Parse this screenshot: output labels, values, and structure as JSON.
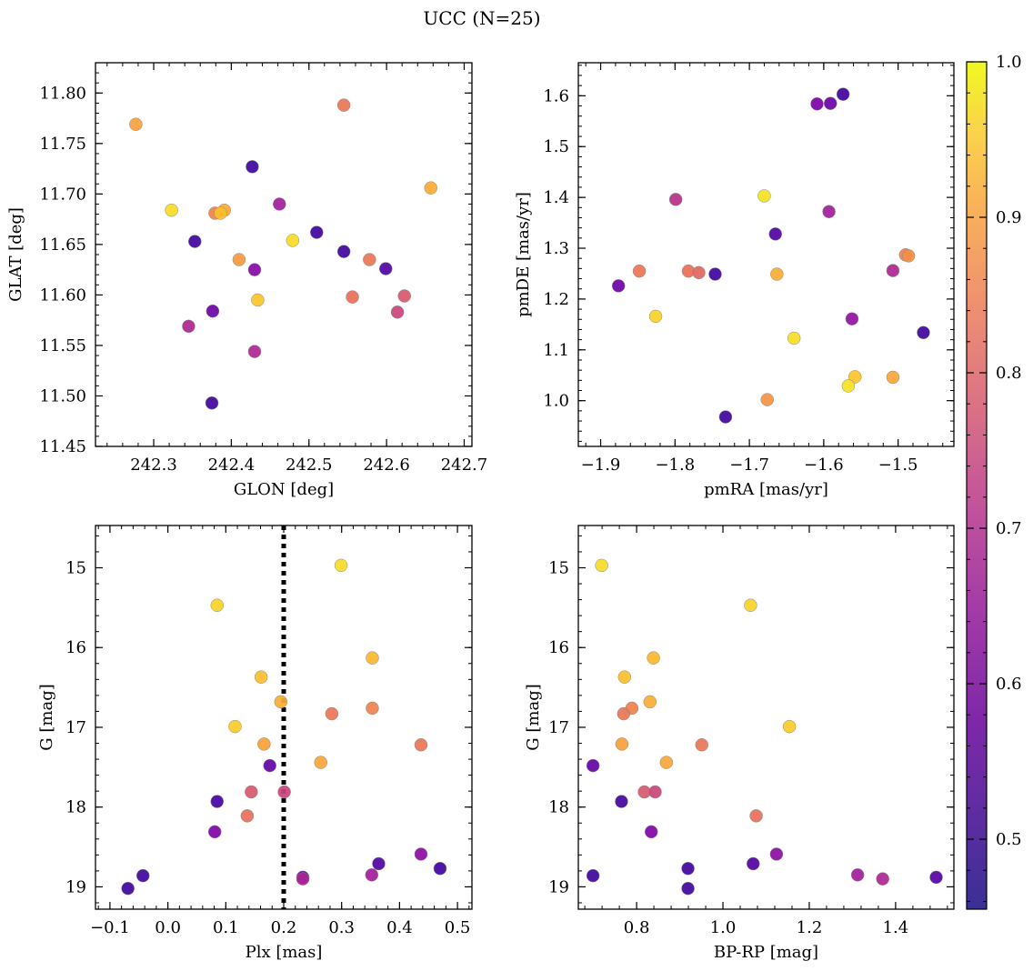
{
  "title": "UCC (N=25)",
  "colorbar": {
    "colormap": "plasma",
    "range": [
      0.455,
      1.0
    ],
    "ticks": [
      0.5,
      0.6,
      0.7,
      0.8,
      0.9,
      1.0
    ],
    "tick_labels": [
      "0.5",
      "0.6",
      "0.7",
      "0.8",
      "0.9",
      "1.0"
    ]
  },
  "chart_data": [
    {
      "type": "scatter",
      "id": "glon-glat",
      "xlabel": "GLON [deg]",
      "ylabel": "GLAT [deg]",
      "xlim": [
        242.225,
        242.71
      ],
      "ylim": [
        11.45,
        11.83
      ],
      "invert_y": false,
      "xticks": [
        242.3,
        242.4,
        242.5,
        242.6,
        242.7
      ],
      "xtick_labels": [
        "242.3",
        "242.4",
        "242.5",
        "242.6",
        "242.7"
      ],
      "yticks": [
        11.45,
        11.5,
        11.55,
        11.6,
        11.65,
        11.7,
        11.75,
        11.8
      ],
      "ytick_labels": [
        "11.45",
        "11.50",
        "11.55",
        "11.60",
        "11.65",
        "11.70",
        "11.75",
        "11.80"
      ],
      "points": [
        {
          "x": 242.277,
          "y": 11.769,
          "c": 0.87
        },
        {
          "x": 242.545,
          "y": 11.788,
          "c": 0.8
        },
        {
          "x": 242.427,
          "y": 11.727,
          "c": 0.47
        },
        {
          "x": 242.657,
          "y": 11.706,
          "c": 0.89
        },
        {
          "x": 242.323,
          "y": 11.684,
          "c": 0.96
        },
        {
          "x": 242.391,
          "y": 11.684,
          "c": 0.89
        },
        {
          "x": 242.379,
          "y": 11.681,
          "c": 0.82
        },
        {
          "x": 242.386,
          "y": 11.681,
          "c": 0.92
        },
        {
          "x": 242.462,
          "y": 11.69,
          "c": 0.62
        },
        {
          "x": 242.51,
          "y": 11.662,
          "c": 0.47
        },
        {
          "x": 242.479,
          "y": 11.654,
          "c": 0.96
        },
        {
          "x": 242.353,
          "y": 11.653,
          "c": 0.47
        },
        {
          "x": 242.545,
          "y": 11.643,
          "c": 0.47
        },
        {
          "x": 242.41,
          "y": 11.635,
          "c": 0.86
        },
        {
          "x": 242.578,
          "y": 11.635,
          "c": 0.8
        },
        {
          "x": 242.599,
          "y": 11.626,
          "c": 0.49
        },
        {
          "x": 242.43,
          "y": 11.625,
          "c": 0.57
        },
        {
          "x": 242.434,
          "y": 11.595,
          "c": 0.93
        },
        {
          "x": 242.556,
          "y": 11.598,
          "c": 0.79
        },
        {
          "x": 242.623,
          "y": 11.599,
          "c": 0.74
        },
        {
          "x": 242.614,
          "y": 11.583,
          "c": 0.7
        },
        {
          "x": 242.376,
          "y": 11.584,
          "c": 0.53
        },
        {
          "x": 242.345,
          "y": 11.569,
          "c": 0.64
        },
        {
          "x": 242.43,
          "y": 11.544,
          "c": 0.64
        },
        {
          "x": 242.375,
          "y": 11.493,
          "c": 0.47
        }
      ]
    },
    {
      "type": "scatter",
      "id": "pmra-pmde",
      "xlabel": "pmRA [mas/yr]",
      "ylabel": "pmDE [mas/yr]",
      "xlim": [
        -1.93,
        -1.425
      ],
      "ylim": [
        0.91,
        1.665
      ],
      "invert_y": false,
      "xticks": [
        -1.9,
        -1.8,
        -1.7,
        -1.6,
        -1.5
      ],
      "xtick_labels": [
        "−1.9",
        "−1.8",
        "−1.7",
        "−1.6",
        "−1.5"
      ],
      "yticks": [
        1.0,
        1.1,
        1.2,
        1.3,
        1.4,
        1.5,
        1.6
      ],
      "ytick_labels": [
        "1.0",
        "1.1",
        "1.2",
        "1.3",
        "1.4",
        "1.5",
        "1.6"
      ],
      "points": [
        {
          "x": -1.574,
          "y": 1.603,
          "c": 0.47
        },
        {
          "x": -1.609,
          "y": 1.584,
          "c": 0.55
        },
        {
          "x": -1.591,
          "y": 1.585,
          "c": 0.53
        },
        {
          "x": -1.68,
          "y": 1.403,
          "c": 0.97
        },
        {
          "x": -1.799,
          "y": 1.396,
          "c": 0.66
        },
        {
          "x": -1.593,
          "y": 1.372,
          "c": 0.62
        },
        {
          "x": -1.665,
          "y": 1.328,
          "c": 0.49
        },
        {
          "x": -1.49,
          "y": 1.287,
          "c": 0.82
        },
        {
          "x": -1.486,
          "y": 1.285,
          "c": 0.84
        },
        {
          "x": -1.848,
          "y": 1.255,
          "c": 0.8
        },
        {
          "x": -1.782,
          "y": 1.255,
          "c": 0.79
        },
        {
          "x": -1.768,
          "y": 1.252,
          "c": 0.77
        },
        {
          "x": -1.746,
          "y": 1.249,
          "c": 0.47
        },
        {
          "x": -1.663,
          "y": 1.249,
          "c": 0.89
        },
        {
          "x": -1.507,
          "y": 1.256,
          "c": 0.64
        },
        {
          "x": -1.876,
          "y": 1.226,
          "c": 0.53
        },
        {
          "x": -1.826,
          "y": 1.166,
          "c": 0.95
        },
        {
          "x": -1.562,
          "y": 1.161,
          "c": 0.59
        },
        {
          "x": -1.466,
          "y": 1.134,
          "c": 0.47
        },
        {
          "x": -1.64,
          "y": 1.123,
          "c": 0.96
        },
        {
          "x": -1.558,
          "y": 1.047,
          "c": 0.93
        },
        {
          "x": -1.507,
          "y": 1.046,
          "c": 0.88
        },
        {
          "x": -1.567,
          "y": 1.029,
          "c": 0.97
        },
        {
          "x": -1.676,
          "y": 1.002,
          "c": 0.85
        },
        {
          "x": -1.732,
          "y": 0.968,
          "c": 0.47
        }
      ]
    },
    {
      "type": "scatter",
      "id": "plx-g",
      "xlabel": "Plx [mas]",
      "ylabel": "G [mag]",
      "xlim": [
        -0.125,
        0.525
      ],
      "ylim": [
        14.47,
        19.28
      ],
      "invert_y": true,
      "vline": {
        "x": 0.2,
        "style": "dotted"
      },
      "xticks": [
        -0.1,
        0.0,
        0.1,
        0.2,
        0.3,
        0.4,
        0.5
      ],
      "xtick_labels": [
        "−0.1",
        "0.0",
        "0.1",
        "0.2",
        "0.3",
        "0.4",
        "0.5"
      ],
      "yticks": [
        15,
        16,
        17,
        18,
        19
      ],
      "ytick_labels": [
        "15",
        "16",
        "17",
        "18",
        "19"
      ],
      "points": [
        {
          "x": 0.299,
          "y": 14.97,
          "c": 0.96
        },
        {
          "x": 0.085,
          "y": 15.47,
          "c": 0.95
        },
        {
          "x": 0.353,
          "y": 16.13,
          "c": 0.91
        },
        {
          "x": 0.161,
          "y": 16.37,
          "c": 0.92
        },
        {
          "x": 0.195,
          "y": 16.68,
          "c": 0.89
        },
        {
          "x": 0.353,
          "y": 16.76,
          "c": 0.82
        },
        {
          "x": 0.283,
          "y": 16.83,
          "c": 0.8
        },
        {
          "x": 0.116,
          "y": 16.99,
          "c": 0.94
        },
        {
          "x": 0.166,
          "y": 17.21,
          "c": 0.87
        },
        {
          "x": 0.437,
          "y": 17.22,
          "c": 0.8
        },
        {
          "x": 0.264,
          "y": 17.44,
          "c": 0.88
        },
        {
          "x": 0.176,
          "y": 17.48,
          "c": 0.52
        },
        {
          "x": 0.144,
          "y": 17.81,
          "c": 0.74
        },
        {
          "x": 0.201,
          "y": 17.81,
          "c": 0.7
        },
        {
          "x": 0.085,
          "y": 17.93,
          "c": 0.48
        },
        {
          "x": 0.137,
          "y": 18.11,
          "c": 0.79
        },
        {
          "x": 0.081,
          "y": 18.31,
          "c": 0.56
        },
        {
          "x": 0.437,
          "y": 18.59,
          "c": 0.58
        },
        {
          "x": 0.364,
          "y": 18.71,
          "c": 0.49
        },
        {
          "x": 0.47,
          "y": 18.77,
          "c": 0.47
        },
        {
          "x": 0.352,
          "y": 18.85,
          "c": 0.62
        },
        {
          "x": -0.043,
          "y": 18.86,
          "c": 0.47
        },
        {
          "x": 0.233,
          "y": 18.88,
          "c": 0.5
        },
        {
          "x": 0.233,
          "y": 18.9,
          "c": 0.64
        },
        {
          "x": -0.069,
          "y": 19.02,
          "c": 0.47
        }
      ]
    },
    {
      "type": "scatter",
      "id": "bprp-g",
      "xlabel": "BP-RP [mag]",
      "ylabel": "G [mag]",
      "xlim": [
        0.665,
        1.535
      ],
      "ylim": [
        14.47,
        19.28
      ],
      "invert_y": true,
      "xticks": [
        0.8,
        1.0,
        1.2,
        1.4
      ],
      "xtick_labels": [
        "0.8",
        "1.0",
        "1.2",
        "1.4"
      ],
      "yticks": [
        15,
        16,
        17,
        18,
        19
      ],
      "ytick_labels": [
        "15",
        "16",
        "17",
        "18",
        "19"
      ],
      "points": [
        {
          "x": 0.719,
          "y": 14.97,
          "c": 0.96
        },
        {
          "x": 1.064,
          "y": 15.47,
          "c": 0.95
        },
        {
          "x": 0.839,
          "y": 16.13,
          "c": 0.91
        },
        {
          "x": 0.772,
          "y": 16.37,
          "c": 0.92
        },
        {
          "x": 0.831,
          "y": 16.68,
          "c": 0.89
        },
        {
          "x": 0.789,
          "y": 16.76,
          "c": 0.82
        },
        {
          "x": 0.77,
          "y": 16.83,
          "c": 0.8
        },
        {
          "x": 1.154,
          "y": 16.99,
          "c": 0.94
        },
        {
          "x": 0.766,
          "y": 17.21,
          "c": 0.87
        },
        {
          "x": 0.951,
          "y": 17.22,
          "c": 0.8
        },
        {
          "x": 0.869,
          "y": 17.44,
          "c": 0.88
        },
        {
          "x": 0.699,
          "y": 17.48,
          "c": 0.52
        },
        {
          "x": 0.818,
          "y": 17.81,
          "c": 0.74
        },
        {
          "x": 0.843,
          "y": 17.81,
          "c": 0.7
        },
        {
          "x": 0.765,
          "y": 17.93,
          "c": 0.48
        },
        {
          "x": 1.077,
          "y": 18.11,
          "c": 0.79
        },
        {
          "x": 0.834,
          "y": 18.31,
          "c": 0.56
        },
        {
          "x": 1.124,
          "y": 18.59,
          "c": 0.58
        },
        {
          "x": 1.07,
          "y": 18.71,
          "c": 0.49
        },
        {
          "x": 0.919,
          "y": 18.77,
          "c": 0.47
        },
        {
          "x": 1.312,
          "y": 18.85,
          "c": 0.62
        },
        {
          "x": 0.699,
          "y": 18.86,
          "c": 0.47
        },
        {
          "x": 1.494,
          "y": 18.88,
          "c": 0.5
        },
        {
          "x": 1.37,
          "y": 18.9,
          "c": 0.64
        },
        {
          "x": 0.919,
          "y": 19.02,
          "c": 0.47
        }
      ]
    }
  ]
}
